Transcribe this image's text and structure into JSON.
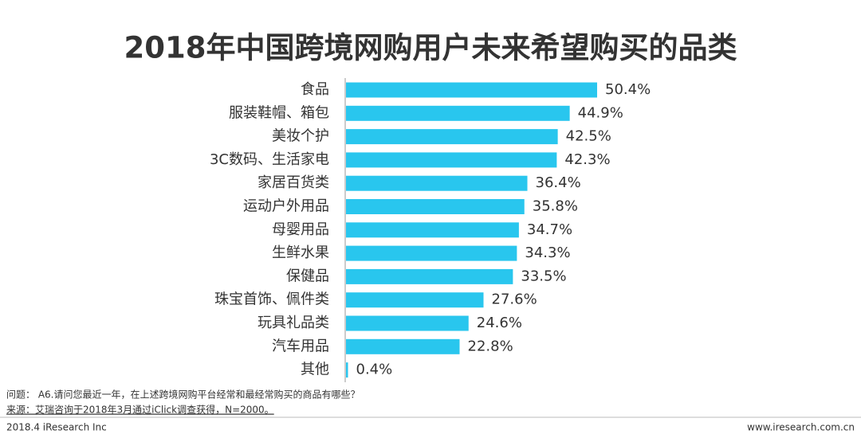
{
  "chart_data": {
    "type": "bar",
    "orientation": "horizontal",
    "title": "2018年中国跨境网购用户未来希望购买的品类",
    "categories": [
      "食品",
      "服装鞋帽、箱包",
      "美妆个护",
      "3C数码、生活家电",
      "家居百货类",
      "运动户外用品",
      "母婴用品",
      "生鲜水果",
      "保健品",
      "珠宝首饰、佩件类",
      "玩具礼品类",
      "汽车用品",
      "其他"
    ],
    "values": [
      50.4,
      44.9,
      42.5,
      42.3,
      36.4,
      35.8,
      34.7,
      34.3,
      33.5,
      27.6,
      24.6,
      22.8,
      0.4
    ],
    "value_labels": [
      "50.4%",
      "44.9%",
      "42.5%",
      "42.3%",
      "36.4%",
      "35.8%",
      "34.7%",
      "34.3%",
      "33.5%",
      "27.6%",
      "24.6%",
      "22.8%",
      "0.4%"
    ],
    "color": "#29c6ee",
    "annotations": [
      "问题： A6.请问您最近一年，在上述跨境网购平台经常和最经常购买的商品有哪些？",
      "来源：艾瑞咨询于2018年3月通过iClick调查获得，N=2000。",
      "2018.4 iResearch Inc",
      "www.iresearch.com.cn"
    ]
  }
}
